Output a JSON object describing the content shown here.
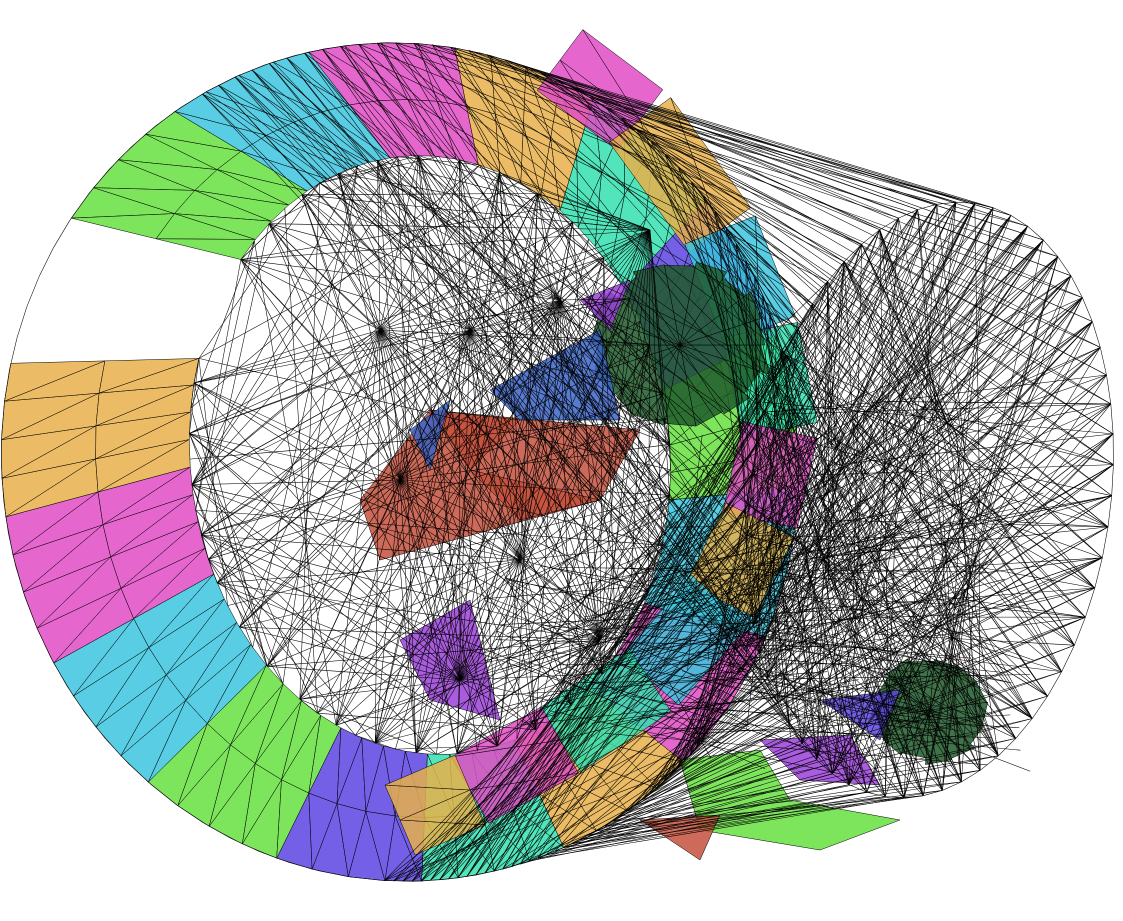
{
  "figure": {
    "kind": "3d-triangle-mesh-wireframe",
    "background": "#ffffff",
    "edge_color": "#000000",
    "fill_opacity": 0.85
  },
  "palette": {
    "green": "#66e040",
    "cyan": "#3cc4de",
    "magenta": "#e04cc4",
    "orange": "#e8b04a",
    "teal": "#34e0b0",
    "blue": "#5a44e2",
    "dark_green": "#1e5a2a",
    "red": "#c4503c",
    "mid_blue": "#3a64c8",
    "purple": "#9a40d8"
  },
  "mesh_parts": [
    {
      "name": "outer-band-ring",
      "colors": [
        "green",
        "cyan",
        "magenta",
        "orange",
        "teal",
        "blue"
      ]
    },
    {
      "name": "inner-core-patch",
      "colors": [
        "dark_green",
        "red",
        "mid_blue",
        "purple"
      ]
    },
    {
      "name": "diagonal-band",
      "colors": [
        "magenta",
        "orange",
        "cyan",
        "teal"
      ]
    },
    {
      "name": "lower-right-patch",
      "colors": [
        "dark_green",
        "blue",
        "purple",
        "green"
      ]
    }
  ]
}
